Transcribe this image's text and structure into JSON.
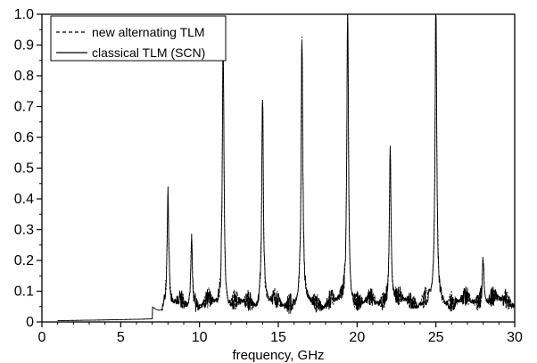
{
  "chart_data": {
    "type": "line",
    "xlabel": "frequency, GHz",
    "ylabel": "",
    "xlim": [
      0,
      30
    ],
    "ylim": [
      0,
      1.0
    ],
    "xticks": [
      "0",
      "5",
      "10",
      "15",
      "20",
      "25",
      "30"
    ],
    "yticks": [
      "0",
      "0.1",
      "0.2",
      "0.3",
      "0.4",
      "0.5",
      "0.6",
      "0.7",
      "0.8",
      "0.9",
      "1.0"
    ],
    "grid": false,
    "legend_position": "top-left",
    "series": [
      {
        "name": "new alternating TLM",
        "style": "dashed",
        "color": "#000000",
        "peaks": [
          {
            "f": 8.0,
            "amp": 0.37
          },
          {
            "f": 9.5,
            "amp": 0.24
          },
          {
            "f": 11.5,
            "amp": 0.88
          },
          {
            "f": 14.0,
            "amp": 0.68
          },
          {
            "f": 16.5,
            "amp": 0.87
          },
          {
            "f": 19.4,
            "amp": 1.0
          },
          {
            "f": 22.1,
            "amp": 0.52
          },
          {
            "f": 25.0,
            "amp": 0.99
          },
          {
            "f": 28.0,
            "amp": 0.15
          }
        ]
      },
      {
        "name": "classical TLM (SCN)",
        "style": "solid",
        "color": "#000000",
        "peaks": [
          {
            "f": 8.0,
            "amp": 0.37
          },
          {
            "f": 9.5,
            "amp": 0.24
          },
          {
            "f": 11.5,
            "amp": 0.88
          },
          {
            "f": 14.0,
            "amp": 0.68
          },
          {
            "f": 16.5,
            "amp": 0.87
          },
          {
            "f": 19.4,
            "amp": 1.0
          },
          {
            "f": 22.1,
            "amp": 0.52
          },
          {
            "f": 25.0,
            "amp": 0.99
          },
          {
            "f": 28.0,
            "amp": 0.15
          }
        ]
      }
    ]
  }
}
